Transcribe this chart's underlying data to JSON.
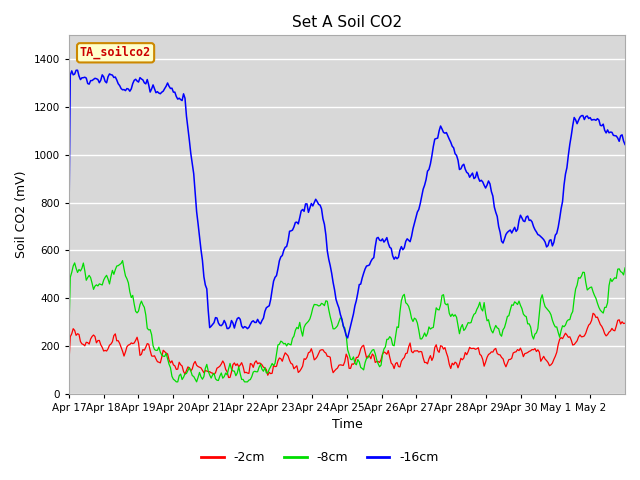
{
  "title": "Set A Soil CO2",
  "ylabel": "Soil CO2 (mV)",
  "xlabel": "Time",
  "annotation": "TA_soilco2",
  "annotation_bg": "#ffffcc",
  "annotation_border": "#cc8800",
  "annotation_text_color": "#cc0000",
  "line_colors": {
    "red": "#ff0000",
    "green": "#00dd00",
    "blue": "#0000ff"
  },
  "legend_labels": [
    "-2cm",
    "-8cm",
    "-16cm"
  ],
  "ylim": [
    0,
    1500
  ],
  "yticks": [
    0,
    200,
    400,
    600,
    800,
    1000,
    1200,
    1400
  ],
  "plot_bg": "#d8d8d8",
  "grid_color": "#ffffff",
  "fig_bg": "#ffffff",
  "dates": [
    "Apr 17",
    "Apr 18",
    "Apr 19",
    "Apr 20",
    "Apr 21",
    "Apr 22",
    "Apr 23",
    "Apr 24",
    "Apr 25",
    "Apr 26",
    "Apr 27",
    "Apr 28",
    "Apr 29",
    "Apr 30",
    "May 1",
    "May 2"
  ]
}
